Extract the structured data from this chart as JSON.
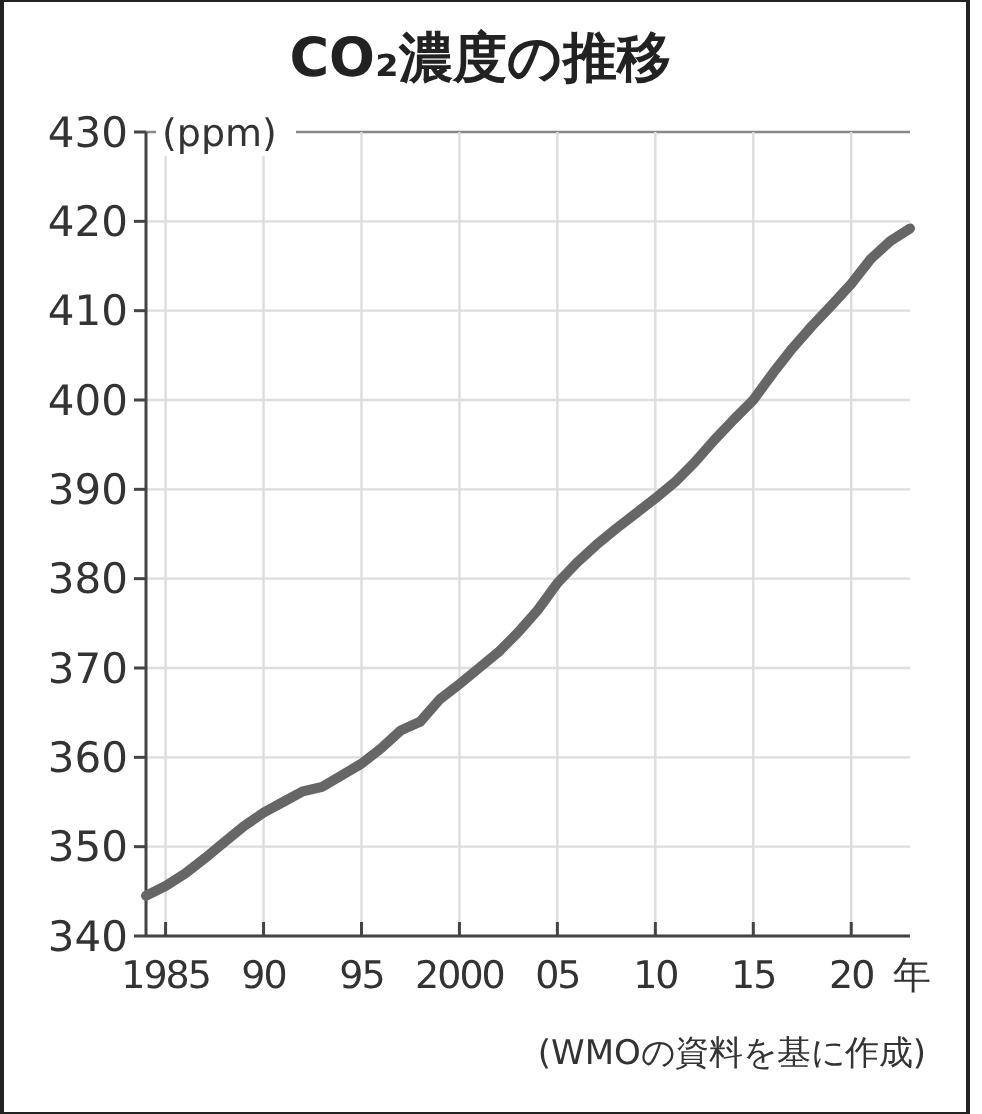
{
  "chart_data": {
    "type": "line",
    "title": "CO₂濃度の推移",
    "ylabel": "(ppm)",
    "annotations": [
      "(WMOの資料を基に作成)"
    ],
    "x": [
      1984,
      1985,
      1986,
      1987,
      1988,
      1989,
      1990,
      1991,
      1992,
      1993,
      1994,
      1995,
      1996,
      1997,
      1998,
      1999,
      2000,
      2001,
      2002,
      2003,
      2004,
      2005,
      2006,
      2007,
      2008,
      2009,
      2010,
      2011,
      2012,
      2013,
      2014,
      2015,
      2016,
      2017,
      2018,
      2019,
      2020,
      2021,
      2022,
      2023
    ],
    "series": [
      {
        "color": "#666666",
        "values": [
          344.5,
          345.6,
          347,
          348.7,
          350.5,
          352.3,
          353.8,
          355,
          356.2,
          356.7,
          358,
          359.3,
          361,
          363,
          364,
          366.5,
          368.2,
          370,
          371.8,
          374,
          376.5,
          379.5,
          381.8,
          383.8,
          385.6,
          387.3,
          389,
          390.8,
          393,
          395.5,
          397.8,
          400,
          403,
          405.8,
          408.3,
          410.6,
          413,
          415.8,
          417.8,
          419.2
        ]
      }
    ],
    "xlim": [
      1984,
      2023
    ],
    "xticks": [
      1985,
      {
        "value": 1990,
        "label": "90"
      },
      {
        "value": 1995,
        "label": "95"
      },
      2000,
      {
        "value": 2005,
        "label": "05"
      },
      {
        "value": 2010,
        "label": "10"
      },
      {
        "value": 2015,
        "label": "15"
      },
      {
        "value": 2020,
        "label": "20"
      }
    ],
    "xlabel": "年",
    "ylim": [
      340,
      430
    ],
    "yticks": [
      340,
      350,
      360,
      370,
      380,
      390,
      400,
      410,
      420,
      430
    ],
    "grid": true
  }
}
